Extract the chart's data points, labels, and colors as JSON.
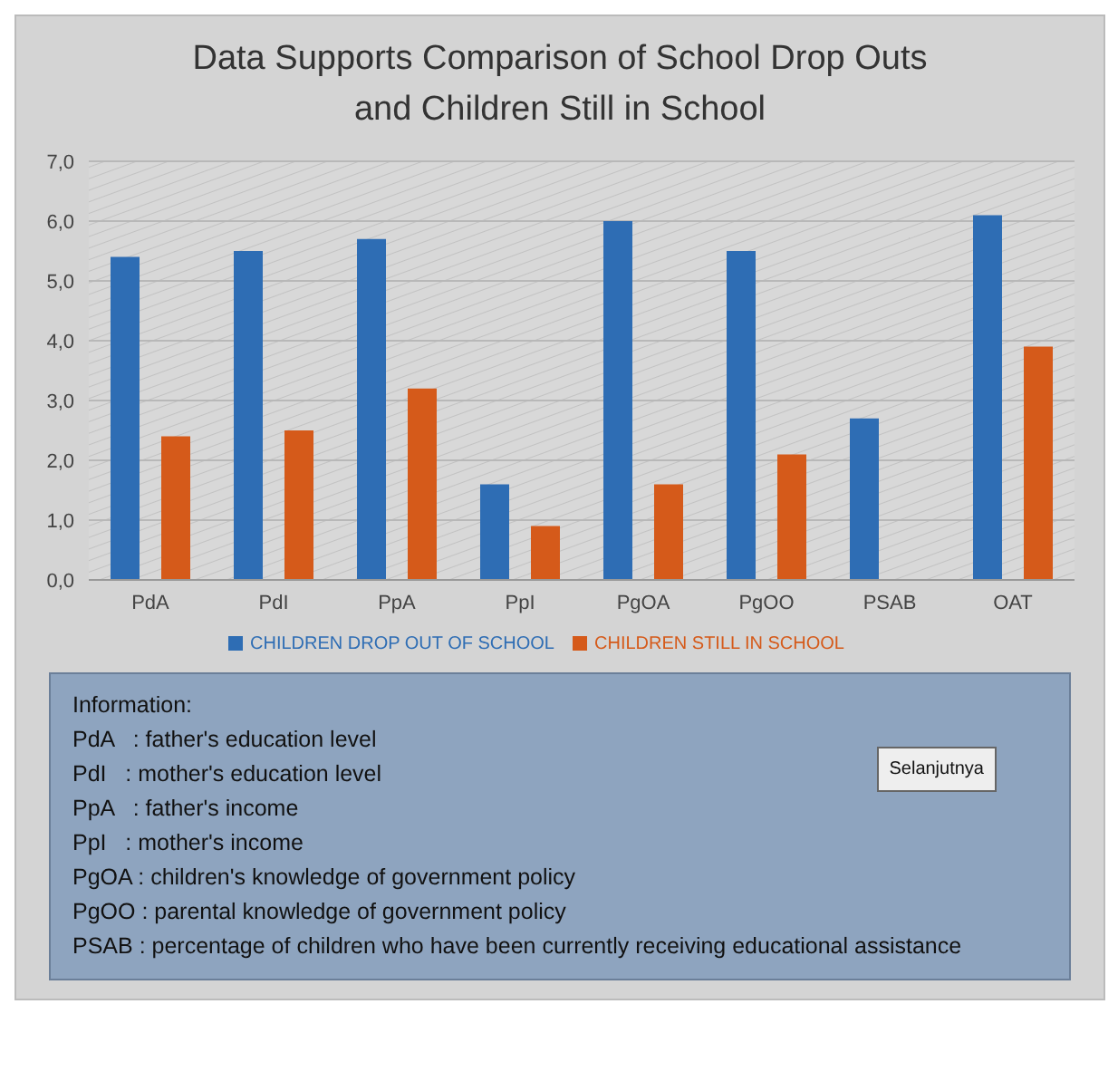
{
  "chart_data": {
    "type": "bar",
    "title": "Data Supports Comparison of School Drop Outs and Children Still in School",
    "categories": [
      "PdA",
      "PdI",
      "PpA",
      "PpI",
      "PgOA",
      "PgOO",
      "PSAB",
      "OAT"
    ],
    "series": [
      {
        "name": "CHILDREN DROP OUT OF SCHOOL",
        "color": "#2e6db4",
        "values": [
          5.4,
          5.5,
          5.7,
          1.6,
          6.0,
          5.5,
          2.7,
          6.1
        ]
      },
      {
        "name": "CHILDREN STILL IN SCHOOL",
        "color": "#d55a1a",
        "values": [
          2.4,
          2.5,
          3.2,
          0.9,
          1.6,
          2.1,
          null,
          3.9
        ]
      }
    ],
    "ylim": [
      0,
      7
    ],
    "yticks": [
      {
        "value": 0,
        "label": "0,0"
      },
      {
        "value": 1,
        "label": "1,0"
      },
      {
        "value": 2,
        "label": "2,0"
      },
      {
        "value": 3,
        "label": "3,0"
      },
      {
        "value": 4,
        "label": "4,0"
      },
      {
        "value": 5,
        "label": "5,0"
      },
      {
        "value": 6,
        "label": "6,0"
      },
      {
        "value": 7,
        "label": "7,0"
      }
    ],
    "grid": "y",
    "legend": "bottom",
    "annotations": [
      "Information:",
      "PdA   : father's education level",
      "PdI   : mother's education level",
      "PpA   : father's income",
      "PpI   : mother's income",
      "PgOA : children's knowledge of government policy",
      "PgOO : parental knowledge of government policy",
      "PSAB : percentage of children who have been currently receiving educational assistance",
      "Selanjutnya"
    ]
  }
}
